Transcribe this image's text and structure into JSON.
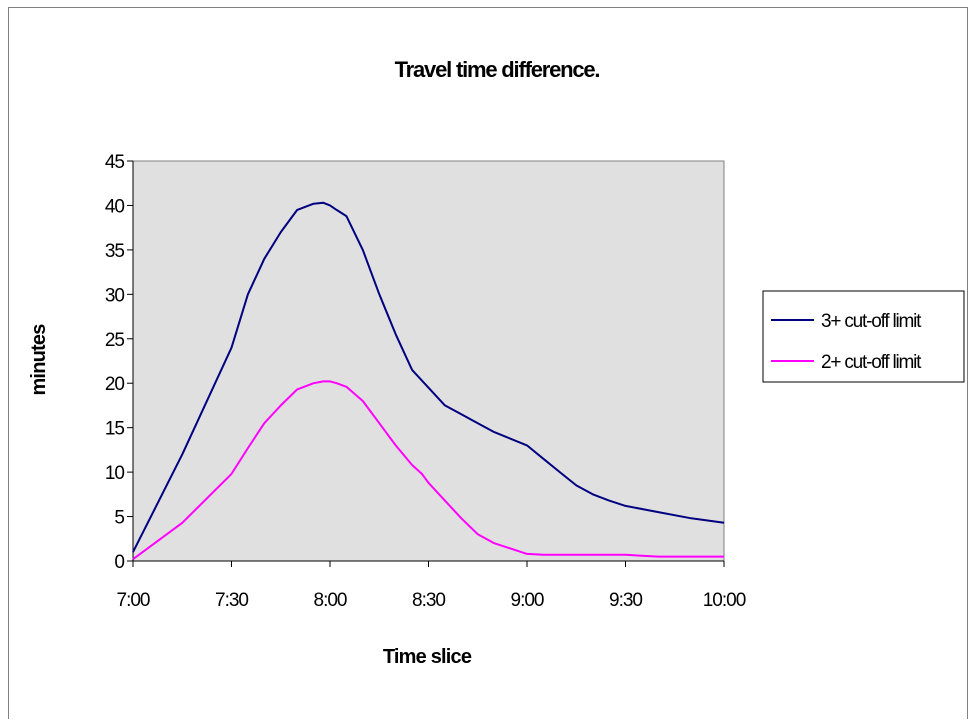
{
  "chart_data": {
    "type": "line",
    "title": "Travel time difference.",
    "xlabel": "Time slice",
    "ylabel": "minutes",
    "x_tick_labels": [
      "7:00",
      "7:30",
      "8:00",
      "8:30",
      "9:00",
      "9:30",
      "10:00"
    ],
    "y_tick_labels": [
      "0",
      "5",
      "10",
      "15",
      "20",
      "25",
      "30",
      "35",
      "40",
      "45"
    ],
    "ylim": [
      0,
      45
    ],
    "xlim": [
      "7:00",
      "10:00"
    ],
    "grid": false,
    "plot_background": "#e0e0e0",
    "legend_position": "right",
    "x": [
      "7:00",
      "7:15",
      "7:30",
      "7:35",
      "7:40",
      "7:45",
      "7:50",
      "7:55",
      "7:58",
      "8:00",
      "8:02",
      "8:05",
      "8:10",
      "8:15",
      "8:20",
      "8:25",
      "8:28",
      "8:30",
      "8:35",
      "8:40",
      "8:45",
      "8:50",
      "9:00",
      "9:05",
      "9:10",
      "9:15",
      "9:20",
      "9:25",
      "9:30",
      "9:40",
      "9:50",
      "10:00"
    ],
    "series": [
      {
        "name": "3+ cut-off limit",
        "color": "#000080",
        "values": [
          1.0,
          12.0,
          24.0,
          30.0,
          34.0,
          37.0,
          39.5,
          40.2,
          40.3,
          40.0,
          39.5,
          38.8,
          35.0,
          30.0,
          25.5,
          21.5,
          20.3,
          19.5,
          17.5,
          16.5,
          15.5,
          14.5,
          13.0,
          11.5,
          10.0,
          8.5,
          7.5,
          6.8,
          6.2,
          5.5,
          4.8,
          4.3
        ]
      },
      {
        "name": "2+ cut-off limit",
        "color": "#ff00ff",
        "values": [
          0.2,
          4.3,
          9.8,
          12.7,
          15.5,
          17.5,
          19.3,
          20.0,
          20.2,
          20.2,
          20.0,
          19.6,
          18.0,
          15.5,
          13.0,
          10.8,
          9.8,
          8.8,
          6.8,
          4.8,
          3.0,
          2.0,
          0.8,
          0.7,
          0.7,
          0.7,
          0.7,
          0.7,
          0.7,
          0.5,
          0.5,
          0.5
        ]
      }
    ]
  }
}
